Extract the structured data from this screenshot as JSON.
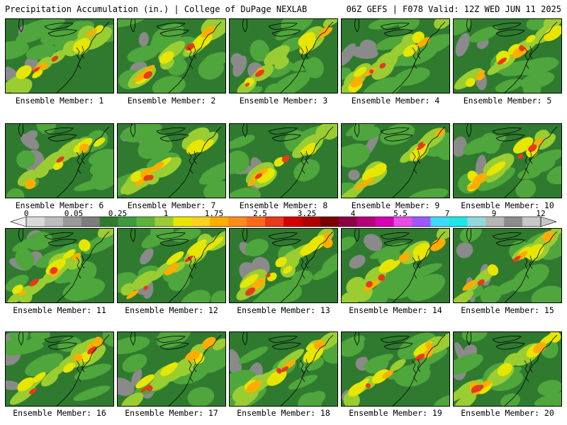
{
  "header": {
    "title": "Precipitation Accumulation (in.) | College of DuPage NEXLAB",
    "run_info": "06Z GEFS | F078 Valid: 12Z WED JUN 11 2025"
  },
  "colorbar": {
    "tick_labels": [
      "0",
      "0.05",
      "0.25",
      "1",
      "1.75",
      "2.5",
      "3.25",
      "4",
      "5.5",
      "7",
      "9",
      "12"
    ],
    "colors": [
      "#d9d9d9",
      "#bdbdbd",
      "#9a9a9a",
      "#7d7d7d",
      "#2f7a2f",
      "#3f9a3f",
      "#5cb33c",
      "#9acd32",
      "#e6e600",
      "#ffd21f",
      "#ffad00",
      "#ff8c1a",
      "#ff6a1a",
      "#e63a1a",
      "#d40000",
      "#b00000",
      "#7a0000",
      "#8b0045",
      "#b4007a",
      "#d400b4",
      "#e64de6",
      "#9b59ff",
      "#3fd9ff",
      "#1fe6e6",
      "#8fd9d9",
      "#b5b5b5",
      "#8c8c8c",
      "#c8c8c8"
    ]
  },
  "panels": [
    {
      "label": "Ensemble Member: 1",
      "intensity": 0.55
    },
    {
      "label": "Ensemble Member: 2",
      "intensity": 0.6
    },
    {
      "label": "Ensemble Member: 3",
      "intensity": 0.5
    },
    {
      "label": "Ensemble Member: 4",
      "intensity": 0.6
    },
    {
      "label": "Ensemble Member: 5",
      "intensity": 0.75
    },
    {
      "label": "Ensemble Member: 6",
      "intensity": 0.45
    },
    {
      "label": "Ensemble Member: 7",
      "intensity": 0.55
    },
    {
      "label": "Ensemble Member: 8",
      "intensity": 0.6
    },
    {
      "label": "Ensemble Member: 9",
      "intensity": 0.65
    },
    {
      "label": "Ensemble Member: 10",
      "intensity": 0.7
    },
    {
      "label": "Ensemble Member: 11",
      "intensity": 0.5
    },
    {
      "label": "Ensemble Member: 12",
      "intensity": 0.55
    },
    {
      "label": "Ensemble Member: 13",
      "intensity": 0.8
    },
    {
      "label": "Ensemble Member: 14",
      "intensity": 0.55
    },
    {
      "label": "Ensemble Member: 15",
      "intensity": 0.6
    },
    {
      "label": "Ensemble Member: 16",
      "intensity": 0.55
    },
    {
      "label": "Ensemble Member: 17",
      "intensity": 0.6
    },
    {
      "label": "Ensemble Member: 18",
      "intensity": 0.65
    },
    {
      "label": "Ensemble Member: 19",
      "intensity": 0.6
    },
    {
      "label": "Ensemble Member: 20",
      "intensity": 0.75
    }
  ]
}
